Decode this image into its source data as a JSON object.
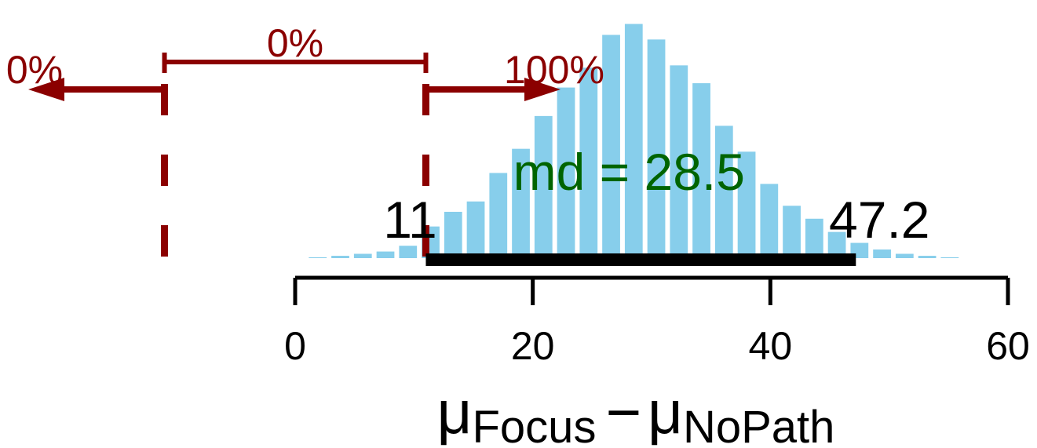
{
  "chart_data": {
    "type": "bar",
    "bin_width": 1.9,
    "bins": [
      {
        "x": 1.9,
        "y": 0.003
      },
      {
        "x": 3.8,
        "y": 0.008
      },
      {
        "x": 5.7,
        "y": 0.015
      },
      {
        "x": 7.6,
        "y": 0.023
      },
      {
        "x": 9.5,
        "y": 0.043
      },
      {
        "x": 11.4,
        "y": 0.11
      },
      {
        "x": 13.3,
        "y": 0.161
      },
      {
        "x": 15.2,
        "y": 0.197
      },
      {
        "x": 17.1,
        "y": 0.296
      },
      {
        "x": 19.0,
        "y": 0.38
      },
      {
        "x": 20.9,
        "y": 0.494
      },
      {
        "x": 22.8,
        "y": 0.593
      },
      {
        "x": 24.7,
        "y": 0.662
      },
      {
        "x": 26.6,
        "y": 0.776
      },
      {
        "x": 28.5,
        "y": 0.814
      },
      {
        "x": 30.4,
        "y": 0.76
      },
      {
        "x": 32.3,
        "y": 0.67
      },
      {
        "x": 34.2,
        "y": 0.608
      },
      {
        "x": 36.1,
        "y": 0.46
      },
      {
        "x": 38.0,
        "y": 0.37
      },
      {
        "x": 39.9,
        "y": 0.258
      },
      {
        "x": 41.8,
        "y": 0.182
      },
      {
        "x": 43.7,
        "y": 0.137
      },
      {
        "x": 45.6,
        "y": 0.091
      },
      {
        "x": 47.5,
        "y": 0.053
      },
      {
        "x": 49.4,
        "y": 0.03
      },
      {
        "x": 51.3,
        "y": 0.015
      },
      {
        "x": 53.2,
        "y": 0.008
      },
      {
        "x": 55.1,
        "y": 0.003
      }
    ],
    "xlim": [
      -25,
      62
    ],
    "ylim": [
      0,
      0.9
    ],
    "x_ticks": [
      0,
      20,
      40,
      60
    ],
    "x_tick_labels": [
      "0",
      "20",
      "40",
      "60"
    ],
    "xlabel_parts": {
      "mu1": "μ",
      "sub1": "Focus",
      "minus": "−",
      "mu2": "μ",
      "sub2": "NoPath"
    },
    "hdi": {
      "low": 11,
      "high": 47.2,
      "low_label": "11",
      "high_label": "47.2"
    },
    "median": {
      "value": 28.5,
      "label": "md = 28.5"
    },
    "rope": {
      "low": -11,
      "high": 11
    },
    "rope_labels": {
      "left": "0%",
      "middle": "0%",
      "right": "100%"
    },
    "colors": {
      "bars": "#87ceeb",
      "rope": "#8b0000",
      "median_text": "#006400",
      "hdi": "#000000",
      "axis": "#000000"
    }
  }
}
